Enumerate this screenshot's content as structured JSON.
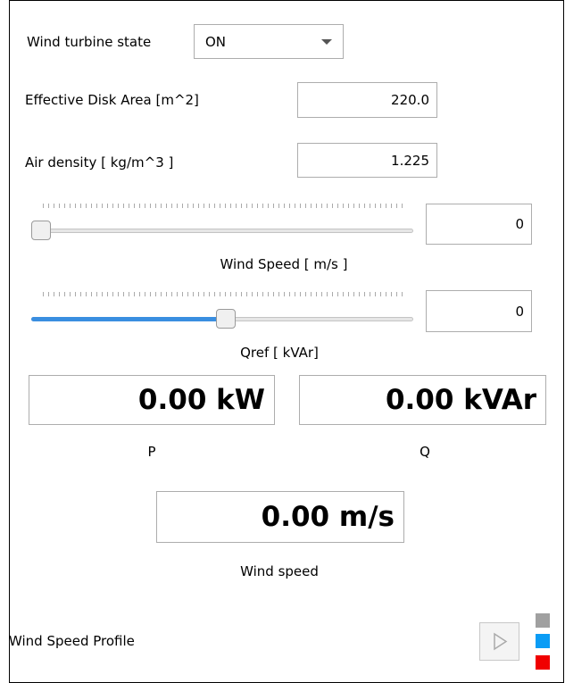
{
  "turbine_state": {
    "label": "Wind turbine state",
    "value": "ON"
  },
  "disk_area": {
    "label": "Effective Disk Area [m^2]",
    "value": "220.0"
  },
  "air_density": {
    "label": "Air density [ kg/m^3 ]",
    "value": "1.225"
  },
  "wind_speed_slider": {
    "label": "Wind Speed [ m/s ]",
    "value": "0"
  },
  "qref_slider": {
    "label": "Qref [ kVAr]",
    "value": "0"
  },
  "p_display": {
    "label": "P",
    "value": "0.00 kW"
  },
  "q_display": {
    "label": "Q",
    "value": "0.00 kVAr"
  },
  "wind_display": {
    "label": "Wind speed",
    "value": "0.00 m/s"
  },
  "profile": {
    "label": "Wind Speed Profile"
  }
}
